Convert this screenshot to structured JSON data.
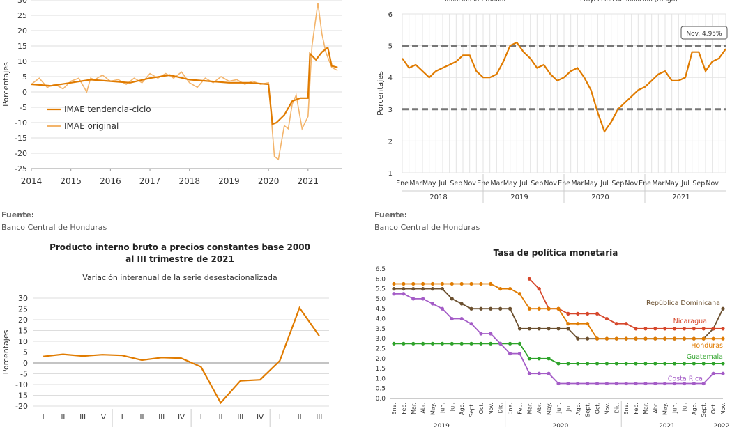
{
  "source_label": "Fuente:",
  "source_text": "Banco Central de Honduras",
  "colors": {
    "orange": "#E07B00",
    "light_orange": "#F3B46B",
    "brown": "#6B5030",
    "red": "#D6472B",
    "green": "#2EA32A",
    "purple": "#A45CC7",
    "dashed": "#777777",
    "grid": "#dddddd"
  },
  "chart_data": [
    {
      "type": "line",
      "ylabel": "Porcentajes",
      "ylim": [
        -25,
        30
      ],
      "yticks": [
        -25,
        -20,
        -15,
        -10,
        -5,
        0,
        5,
        10,
        15,
        20,
        25,
        30
      ],
      "xtick_labels": [
        "2014",
        "2015",
        "2016",
        "2017",
        "2018",
        "2019",
        "2020",
        "2021"
      ],
      "legend_position": "left-middle",
      "series": [
        {
          "name": "IMAE tendencia-ciclo",
          "x": [
            2014.0,
            2014.5,
            2015.0,
            2015.5,
            2016.0,
            2016.5,
            2017.0,
            2017.5,
            2018.0,
            2018.5,
            2019.0,
            2019.5,
            2020.0,
            2020.1,
            2020.2,
            2020.4,
            2020.6,
            2020.8,
            2021.0,
            2021.05,
            2021.2,
            2021.35,
            2021.5,
            2021.6,
            2021.75
          ],
          "y": [
            2.5,
            2.0,
            3.0,
            4.0,
            3.5,
            3.0,
            4.5,
            5.5,
            4.0,
            3.5,
            3.0,
            3.0,
            2.5,
            -10.5,
            -10.0,
            -7.5,
            -3.0,
            -2.0,
            -2.0,
            12.5,
            10.5,
            13.0,
            14.5,
            8.5,
            8.0
          ]
        },
        {
          "name": "IMAE original",
          "x": [
            2014.0,
            2014.2,
            2014.4,
            2014.6,
            2014.8,
            2015.0,
            2015.2,
            2015.4,
            2015.5,
            2015.6,
            2015.8,
            2016.0,
            2016.2,
            2016.4,
            2016.6,
            2016.8,
            2017.0,
            2017.2,
            2017.4,
            2017.6,
            2017.8,
            2018.0,
            2018.2,
            2018.4,
            2018.6,
            2018.8,
            2019.0,
            2019.2,
            2019.4,
            2019.6,
            2019.8,
            2020.0,
            2020.15,
            2020.25,
            2020.4,
            2020.5,
            2020.6,
            2020.7,
            2020.85,
            2021.0,
            2021.1,
            2021.25,
            2021.35,
            2021.45,
            2021.6,
            2021.75
          ],
          "y": [
            2.5,
            4.5,
            1.5,
            2.5,
            1.0,
            3.5,
            4.5,
            0.0,
            4.5,
            4.0,
            5.5,
            3.5,
            4.0,
            2.5,
            4.5,
            3.0,
            6.0,
            4.5,
            6.0,
            4.5,
            6.5,
            3.0,
            1.5,
            4.5,
            3.0,
            5.0,
            3.5,
            4.0,
            2.5,
            3.5,
            2.5,
            3.0,
            -21.0,
            -22.0,
            -11.0,
            -12.0,
            -4.0,
            -1.0,
            -12.0,
            -8.0,
            15.0,
            29.0,
            19.0,
            13.0,
            8.0,
            7.0
          ]
        }
      ]
    },
    {
      "type": "line",
      "title": "",
      "header_labels": [
        "Inflación interanual",
        "Proyección de inflación (rango)"
      ],
      "ylabel": "Porcentajes",
      "ylim": [
        1,
        6
      ],
      "yticks": [
        1,
        2,
        3,
        4,
        5,
        6
      ],
      "month_labels": [
        "Ene",
        "Mar",
        "May",
        "Jul",
        "Sep",
        "Nov"
      ],
      "year_labels": [
        "2018",
        "2019",
        "2020",
        "2021"
      ],
      "annotation": "Nov. 4.95%",
      "target_band": [
        3,
        5
      ],
      "values": [
        4.6,
        4.3,
        4.4,
        4.2,
        4.0,
        4.2,
        4.3,
        4.4,
        4.5,
        4.7,
        4.7,
        4.2,
        4.0,
        4.0,
        4.1,
        4.5,
        5.0,
        5.1,
        4.8,
        4.6,
        4.3,
        4.4,
        4.1,
        3.9,
        4.0,
        4.2,
        4.3,
        4.0,
        3.6,
        2.9,
        2.3,
        2.6,
        3.0,
        3.2,
        3.4,
        3.6,
        3.7,
        3.9,
        4.1,
        4.2,
        3.9,
        3.9,
        4.0,
        4.8,
        4.8,
        4.2,
        4.5,
        4.6,
        4.9
      ]
    },
    {
      "type": "line",
      "title": "Producto interno bruto a precios constantes base 2000",
      "title_line2": "al III trimestre de 2021",
      "subtitle": "Variación interanual de la serie desestacionalizada",
      "ylabel": "Porcentajes",
      "ylim": [
        -20,
        30
      ],
      "yticks": [
        -20,
        -15,
        -10,
        -5,
        0,
        5,
        10,
        15,
        20,
        25,
        30
      ],
      "categories": [
        "I",
        "II",
        "III",
        "IV",
        "I",
        "II",
        "III",
        "IV",
        "I",
        "II",
        "III",
        "IV",
        "I",
        "II",
        "III"
      ],
      "values": [
        3.0,
        4.0,
        3.2,
        3.8,
        3.5,
        1.3,
        2.5,
        2.2,
        -1.8,
        -18.5,
        -8.3,
        -7.8,
        1.0,
        25.5,
        12.5
      ]
    },
    {
      "type": "line",
      "title": "Tasa de política monetaria",
      "ylim": [
        0,
        6.5
      ],
      "yticks": [
        "0.0",
        "0.5",
        "1.0",
        "1.5",
        "2.0",
        "2.5",
        "3.0",
        "3.5",
        "4.0",
        "4.5",
        "5.0",
        "5.5",
        "6.0",
        "6.5"
      ],
      "month_labels": [
        "Ene.",
        "Feb.",
        "Mar.",
        "Abr.",
        "May.",
        "Jun.",
        "Jul.",
        "Ago.",
        "Sept.",
        "Oct.",
        "Nov.",
        "Dic."
      ],
      "year_labels": [
        "2019",
        "2020",
        "2021",
        "2022"
      ],
      "series": [
        {
          "name": "República Dominicana",
          "color": "brown",
          "values": [
            5.5,
            5.5,
            5.5,
            5.5,
            5.5,
            5.5,
            5.0,
            4.75,
            4.5,
            4.5,
            4.5,
            4.5,
            4.5,
            3.5,
            3.5,
            3.5,
            3.5,
            3.5,
            3.5,
            3.0,
            3.0,
            3.0,
            3.0,
            3.0,
            3.0,
            3.0,
            3.0,
            3.0,
            3.0,
            3.0,
            3.0,
            3.0,
            3.0,
            3.5,
            4.5
          ]
        },
        {
          "name": "Nicaragua",
          "color": "red",
          "values": [
            null,
            null,
            null,
            null,
            null,
            null,
            null,
            null,
            null,
            null,
            null,
            null,
            null,
            null,
            6.0,
            5.5,
            4.5,
            4.5,
            4.25,
            4.25,
            4.25,
            4.25,
            4.0,
            3.75,
            3.75,
            3.5,
            3.5,
            3.5,
            3.5,
            3.5,
            3.5,
            3.5,
            3.5,
            3.5,
            3.5
          ]
        },
        {
          "name": "Honduras",
          "color": "orange",
          "values": [
            5.75,
            5.75,
            5.75,
            5.75,
            5.75,
            5.75,
            5.75,
            5.75,
            5.75,
            5.75,
            5.75,
            5.5,
            5.5,
            5.25,
            4.5,
            4.5,
            4.5,
            4.5,
            3.75,
            3.75,
            3.75,
            3.0,
            3.0,
            3.0,
            3.0,
            3.0,
            3.0,
            3.0,
            3.0,
            3.0,
            3.0,
            3.0,
            3.0,
            3.0,
            3.0
          ]
        },
        {
          "name": "Guatemala",
          "color": "green",
          "values": [
            2.75,
            2.75,
            2.75,
            2.75,
            2.75,
            2.75,
            2.75,
            2.75,
            2.75,
            2.75,
            2.75,
            2.75,
            2.75,
            2.75,
            2.0,
            2.0,
            2.0,
            1.75,
            1.75,
            1.75,
            1.75,
            1.75,
            1.75,
            1.75,
            1.75,
            1.75,
            1.75,
            1.75,
            1.75,
            1.75,
            1.75,
            1.75,
            1.75,
            1.75,
            1.75
          ]
        },
        {
          "name": "Costa Rica",
          "color": "purple",
          "values": [
            5.25,
            5.25,
            5.0,
            5.0,
            4.75,
            4.5,
            4.0,
            4.0,
            3.75,
            3.25,
            3.25,
            2.75,
            2.25,
            2.25,
            1.25,
            1.25,
            1.25,
            0.75,
            0.75,
            0.75,
            0.75,
            0.75,
            0.75,
            0.75,
            0.75,
            0.75,
            0.75,
            0.75,
            0.75,
            0.75,
            0.75,
            0.75,
            0.75,
            1.25,
            1.25
          ]
        }
      ]
    }
  ]
}
